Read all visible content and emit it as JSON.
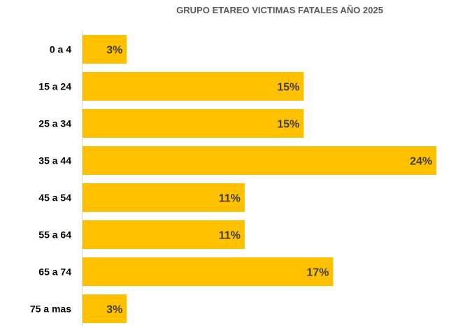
{
  "chart_data": {
    "type": "bar",
    "orientation": "horizontal",
    "title": "GRUPO ETAREO VICTIMAS FATALES AÑO 2025",
    "categories": [
      "0 a 4",
      "15 a 24",
      "25 a 34",
      "35 a 44",
      "45 a 54",
      "55 a 64",
      "65 a 74",
      "75 a mas"
    ],
    "values": [
      3,
      15,
      15,
      24,
      11,
      11,
      17,
      3
    ],
    "labels": [
      "3%",
      "15%",
      "15%",
      "24%",
      "11%",
      "11%",
      "17%",
      "3%"
    ],
    "unit": "%",
    "xlim": [
      0,
      24
    ],
    "grid": false,
    "legend": "none",
    "bar_color": "#FFC000"
  }
}
